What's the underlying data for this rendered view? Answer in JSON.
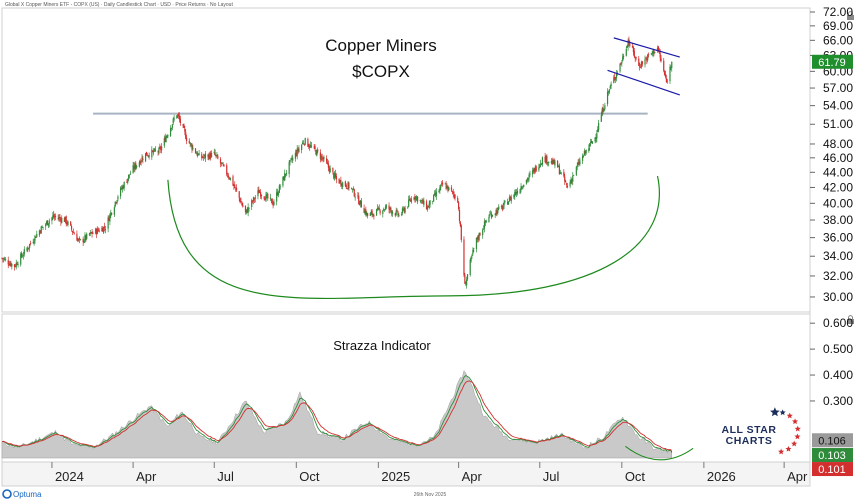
{
  "header_caption": "Global X Copper Miners ETF - COPX (US) · Daily Candlestick Chart · USD · Price Returns · No Layout",
  "main_title": "Copper Miners",
  "main_subtitle": "$COPX",
  "indicator_title": "Strazza Indicator",
  "footer_date": "26th Nov 2025",
  "brand": {
    "optuma": "Optuma",
    "allstar_line1": "ALL STAR",
    "allstar_line2": "CHARTS"
  },
  "colors": {
    "up": "#2e8b3a",
    "down": "#d32f2f",
    "price_badge": "#1f8f2e",
    "channel": "#1a1aa8",
    "resistance": "#a9b4c2",
    "cup": "#1e8a1e",
    "ind_fill": "#c9c9c9",
    "ind_green": "#2e8b3a",
    "ind_red": "#d32f2f",
    "ind_badge_gray": "#9a9a9a"
  },
  "chart_data": [
    {
      "type": "candlestick",
      "title": "Copper Miners",
      "subtitle": "$COPX",
      "scale": "log",
      "ylim": [
        29,
        72
      ],
      "y_ticks": [
        72,
        69,
        66,
        63,
        60,
        57,
        54,
        51,
        48,
        46,
        44,
        42,
        40,
        38,
        36,
        34,
        32,
        30
      ],
      "y_tick_labels": [
        "72.00",
        "69.00",
        "66.00",
        "63.00",
        "60.00",
        "57.00",
        "54.00",
        "51.00",
        "48.00",
        "46.00",
        "44.00",
        "42.00",
        "40.00",
        "38.00",
        "36.00",
        "34.00",
        "32.00",
        "30.00"
      ],
      "x_range": [
        "2023-11-06",
        "2026-04-30"
      ],
      "x_ticks": [
        {
          "date": "2024-01-01",
          "label": "2024",
          "major": true
        },
        {
          "date": "2024-04-01",
          "label": "Apr",
          "major": false
        },
        {
          "date": "2024-07-01",
          "label": "Jul",
          "major": false
        },
        {
          "date": "2024-10-01",
          "label": "Oct",
          "major": false
        },
        {
          "date": "2025-01-01",
          "label": "2025",
          "major": true
        },
        {
          "date": "2025-04-01",
          "label": "Apr",
          "major": false
        },
        {
          "date": "2025-07-01",
          "label": "Jul",
          "major": false
        },
        {
          "date": "2025-10-01",
          "label": "Oct",
          "major": false
        },
        {
          "date": "2026-01-01",
          "label": "2026",
          "major": true
        },
        {
          "date": "2026-04-01",
          "label": "Apr",
          "major": false
        }
      ],
      "last_price": 61.79,
      "last_price_label": "61.79",
      "close_path": [
        [
          "2023-11-06",
          33.8
        ],
        [
          "2023-11-20",
          33.0
        ],
        [
          "2023-12-04",
          34.8
        ],
        [
          "2023-12-18",
          36.8
        ],
        [
          "2024-01-02",
          38.4
        ],
        [
          "2024-01-16",
          38.0
        ],
        [
          "2024-02-01",
          35.5
        ],
        [
          "2024-02-15",
          36.5
        ],
        [
          "2024-03-01",
          37.2
        ],
        [
          "2024-03-15",
          41.0
        ],
        [
          "2024-04-01",
          44.5
        ],
        [
          "2024-04-15",
          46.5
        ],
        [
          "2024-05-01",
          47.0
        ],
        [
          "2024-05-20",
          52.7
        ],
        [
          "2024-06-01",
          48.5
        ],
        [
          "2024-06-15",
          46.0
        ],
        [
          "2024-07-01",
          46.5
        ],
        [
          "2024-07-20",
          43.0
        ],
        [
          "2024-08-05",
          38.8
        ],
        [
          "2024-08-20",
          41.5
        ],
        [
          "2024-09-05",
          40.0
        ],
        [
          "2024-09-25",
          45.5
        ],
        [
          "2024-10-10",
          48.5
        ],
        [
          "2024-10-30",
          46.0
        ],
        [
          "2024-11-15",
          43.0
        ],
        [
          "2024-12-01",
          42.0
        ],
        [
          "2024-12-20",
          38.5
        ],
        [
          "2025-01-10",
          39.5
        ],
        [
          "2025-01-25",
          38.5
        ],
        [
          "2025-02-10",
          41.0
        ],
        [
          "2025-02-25",
          39.5
        ],
        [
          "2025-03-15",
          42.5
        ],
        [
          "2025-03-31",
          40.5
        ],
        [
          "2025-04-08",
          31.0
        ],
        [
          "2025-04-20",
          35.5
        ],
        [
          "2025-05-05",
          38.5
        ],
        [
          "2025-05-20",
          39.5
        ],
        [
          "2025-06-05",
          41.5
        ],
        [
          "2025-06-20",
          43.5
        ],
        [
          "2025-07-05",
          46.0
        ],
        [
          "2025-07-20",
          45.0
        ],
        [
          "2025-08-01",
          42.0
        ],
        [
          "2025-08-15",
          45.5
        ],
        [
          "2025-09-01",
          49.0
        ],
        [
          "2025-09-15",
          56.0
        ],
        [
          "2025-10-01",
          62.0
        ],
        [
          "2025-10-08",
          66.0
        ],
        [
          "2025-10-20",
          61.0
        ],
        [
          "2025-11-01",
          63.0
        ],
        [
          "2025-11-10",
          64.5
        ],
        [
          "2025-11-20",
          58.0
        ],
        [
          "2025-11-26",
          61.79
        ]
      ],
      "annotations": {
        "resistance_line": {
          "value": 52.7,
          "from": "2024-04-01",
          "to": "2025-10-30"
        },
        "cup_curve": {
          "from": [
            "2024-05-10",
            43.0
          ],
          "bottom": [
            "2025-03-20",
            30.1
          ],
          "to": [
            "2025-11-10",
            43.5
          ]
        },
        "flag_channel": {
          "upper": [
            [
              "2025-09-22",
              66.5
            ],
            [
              "2025-12-05",
              62.7
            ]
          ],
          "lower": [
            [
              "2025-09-15",
              60.2
            ],
            [
              "2025-12-05",
              55.8
            ]
          ]
        }
      }
    },
    {
      "type": "area_line",
      "title": "Strazza Indicator",
      "ylim": [
        0.08,
        0.62
      ],
      "y_ticks": [
        0.6,
        0.5,
        0.4,
        0.3
      ],
      "y_tick_labels": [
        "0.600",
        "0.500",
        "0.400",
        "0.300"
      ],
      "area_path": [
        [
          "2023-11-06",
          0.14
        ],
        [
          "2023-11-25",
          0.12
        ],
        [
          "2023-12-15",
          0.15
        ],
        [
          "2024-01-05",
          0.18
        ],
        [
          "2024-01-25",
          0.13
        ],
        [
          "2024-02-15",
          0.12
        ],
        [
          "2024-03-10",
          0.17
        ],
        [
          "2024-04-01",
          0.23
        ],
        [
          "2024-04-20",
          0.28
        ],
        [
          "2024-05-10",
          0.2
        ],
        [
          "2024-05-25",
          0.26
        ],
        [
          "2024-06-15",
          0.16
        ],
        [
          "2024-07-05",
          0.14
        ],
        [
          "2024-08-05",
          0.3
        ],
        [
          "2024-08-25",
          0.18
        ],
        [
          "2024-09-20",
          0.22
        ],
        [
          "2024-10-05",
          0.33
        ],
        [
          "2024-10-25",
          0.18
        ],
        [
          "2024-11-20",
          0.15
        ],
        [
          "2024-12-20",
          0.22
        ],
        [
          "2025-01-15",
          0.15
        ],
        [
          "2025-02-10",
          0.13
        ],
        [
          "2025-03-05",
          0.16
        ],
        [
          "2025-04-08",
          0.42
        ],
        [
          "2025-04-30",
          0.24
        ],
        [
          "2025-05-25",
          0.16
        ],
        [
          "2025-06-25",
          0.14
        ],
        [
          "2025-07-25",
          0.17
        ],
        [
          "2025-08-20",
          0.12
        ],
        [
          "2025-09-10",
          0.16
        ],
        [
          "2025-10-01",
          0.24
        ],
        [
          "2025-10-20",
          0.16
        ],
        [
          "2025-11-10",
          0.11
        ],
        [
          "2025-11-26",
          0.106
        ]
      ],
      "series": [
        {
          "name": "",
          "color": "green",
          "last": 0.103,
          "last_label": "0.103"
        },
        {
          "name": "",
          "color": "red",
          "last": 0.101,
          "last_label": "0.101"
        }
      ],
      "fill_last": 0.106,
      "fill_last_label": "0.106",
      "annotation": {
        "smile_curve": {
          "from": "2025-10-05",
          "to": "2025-12-20",
          "level": 0.102
        }
      }
    }
  ]
}
